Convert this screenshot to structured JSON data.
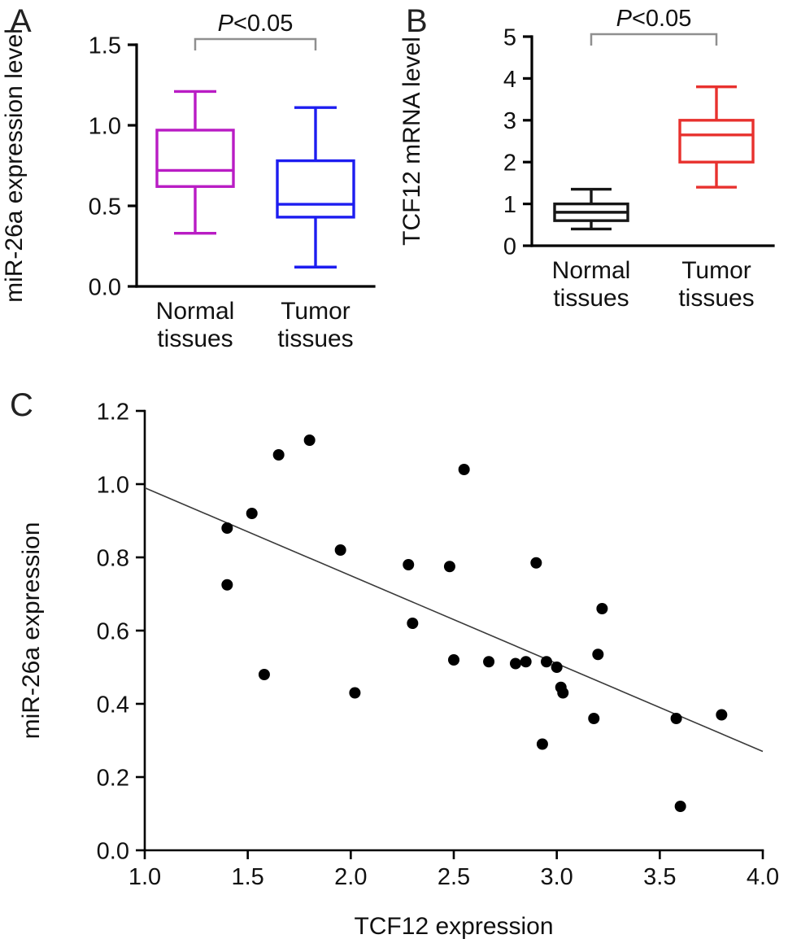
{
  "chart_data": [
    {
      "id": "panel-a",
      "panel_label": "A",
      "type": "boxplot",
      "significance": "P<0.05",
      "ylabel": "miR-26a expression level",
      "ylim": [
        0,
        1.5
      ],
      "yticks": [
        "0.0",
        "0.5",
        "1.0",
        "1.5"
      ],
      "categories": [
        [
          "Normal",
          "tissues"
        ],
        [
          "Tumor",
          "tissues"
        ]
      ],
      "boxes": [
        {
          "name": "Normal tissues",
          "color": "#b91cc4",
          "min": 0.33,
          "q1": 0.62,
          "median": 0.72,
          "q3": 0.97,
          "max": 1.21
        },
        {
          "name": "Tumor tissues",
          "color": "#1d1df0",
          "min": 0.12,
          "q1": 0.43,
          "median": 0.51,
          "q3": 0.78,
          "max": 1.11
        }
      ],
      "bracket_color": "#8f8f8f"
    },
    {
      "id": "panel-b",
      "panel_label": "B",
      "type": "boxplot",
      "significance": "P<0.05",
      "ylabel": "TCF12 mRNA level",
      "ylim": [
        0,
        5
      ],
      "yticks": [
        "0",
        "1",
        "2",
        "3",
        "4",
        "5"
      ],
      "categories": [
        [
          "Normal",
          "tissues"
        ],
        [
          "Tumor",
          "tissues"
        ]
      ],
      "boxes": [
        {
          "name": "Normal tissues",
          "color": "#161616",
          "min": 0.4,
          "q1": 0.6,
          "median": 0.8,
          "q3": 1.0,
          "max": 1.35
        },
        {
          "name": "Tumor tissues",
          "color": "#e8312e",
          "min": 1.4,
          "q1": 2.0,
          "median": 2.65,
          "q3": 3.0,
          "max": 3.8
        }
      ],
      "bracket_color": "#8f8f8f"
    },
    {
      "id": "panel-c",
      "panel_label": "C",
      "type": "scatter",
      "xlabel": "TCF12 expression",
      "ylabel": "miR-26a expression",
      "xlim": [
        1.0,
        4.0
      ],
      "ylim": [
        0.0,
        1.2
      ],
      "xticks": [
        "1.0",
        "1.5",
        "2.0",
        "2.5",
        "3.0",
        "3.5",
        "4.0"
      ],
      "yticks": [
        "0.0",
        "0.2",
        "0.4",
        "0.6",
        "0.8",
        "1.0",
        "1.2"
      ],
      "point_color": "#000000",
      "points": [
        [
          1.4,
          0.88
        ],
        [
          1.4,
          0.725
        ],
        [
          1.52,
          0.92
        ],
        [
          1.58,
          0.48
        ],
        [
          1.65,
          1.08
        ],
        [
          1.8,
          1.12
        ],
        [
          1.95,
          0.82
        ],
        [
          2.02,
          0.43
        ],
        [
          2.28,
          0.78
        ],
        [
          2.3,
          0.62
        ],
        [
          2.48,
          0.775
        ],
        [
          2.5,
          0.52
        ],
        [
          2.55,
          1.04
        ],
        [
          2.67,
          0.515
        ],
        [
          2.8,
          0.51
        ],
        [
          2.85,
          0.515
        ],
        [
          2.9,
          0.785
        ],
        [
          2.93,
          0.29
        ],
        [
          2.95,
          0.515
        ],
        [
          3.0,
          0.5
        ],
        [
          3.02,
          0.445
        ],
        [
          3.03,
          0.43
        ],
        [
          3.18,
          0.36
        ],
        [
          3.2,
          0.535
        ],
        [
          3.22,
          0.66
        ],
        [
          3.58,
          0.36
        ],
        [
          3.6,
          0.12
        ],
        [
          3.8,
          0.37
        ]
      ],
      "trendline": {
        "x1": 1.0,
        "y1": 0.99,
        "x2": 4.0,
        "y2": 0.27,
        "color": "#3a3a3a"
      }
    }
  ]
}
